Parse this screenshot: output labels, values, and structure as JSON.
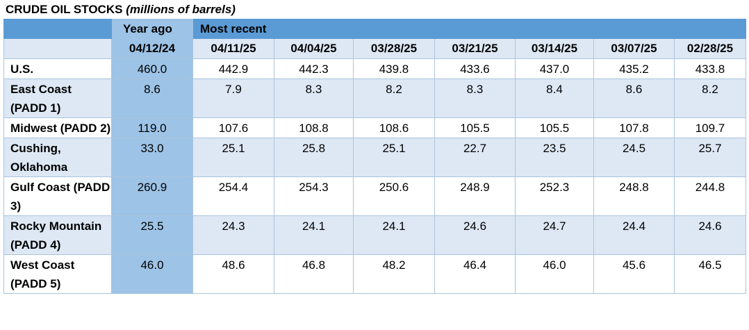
{
  "title": {
    "main": "CRUDE OIL STOCKS",
    "sub": "(millions of barrels)"
  },
  "chart_data": {
    "type": "table",
    "group_headers": {
      "year_ago": "Year ago",
      "most_recent": "Most recent"
    },
    "columns": [
      "04/12/24",
      "04/11/25",
      "04/04/25",
      "03/28/25",
      "03/21/25",
      "03/14/25",
      "03/07/25",
      "02/28/25"
    ],
    "rows": [
      {
        "label": "U.S.",
        "values": [
          "460.0",
          "442.9",
          "442.3",
          "439.8",
          "433.6",
          "437.0",
          "435.2",
          "433.8"
        ]
      },
      {
        "label": "East Coast (PADD 1)",
        "values": [
          "8.6",
          "7.9",
          "8.3",
          "8.2",
          "8.3",
          "8.4",
          "8.6",
          "8.2"
        ]
      },
      {
        "label": "Midwest (PADD 2)",
        "values": [
          "119.0",
          "107.6",
          "108.8",
          "108.6",
          "105.5",
          "105.5",
          "107.8",
          "109.7"
        ]
      },
      {
        "label": "Cushing, Oklahoma",
        "values": [
          "33.0",
          "25.1",
          "25.8",
          "25.1",
          "22.7",
          "23.5",
          "24.5",
          "25.7"
        ]
      },
      {
        "label": "Gulf Coast (PADD 3)",
        "values": [
          "260.9",
          "254.4",
          "254.3",
          "250.6",
          "248.9",
          "252.3",
          "248.8",
          "244.8"
        ]
      },
      {
        "label": "Rocky Mountain (PADD 4)",
        "values": [
          "25.5",
          "24.3",
          "24.1",
          "24.1",
          "24.6",
          "24.7",
          "24.4",
          "24.6"
        ]
      },
      {
        "label": "West Coast (PADD 5)",
        "values": [
          "46.0",
          "48.6",
          "46.8",
          "48.2",
          "46.4",
          "46.0",
          "45.6",
          "46.5"
        ]
      }
    ]
  },
  "colors": {
    "header_blue": "#5b9bd5",
    "year_ago_blue": "#9dc3e6",
    "stripe": "#dde8f4",
    "grid": "#a9c4de"
  }
}
